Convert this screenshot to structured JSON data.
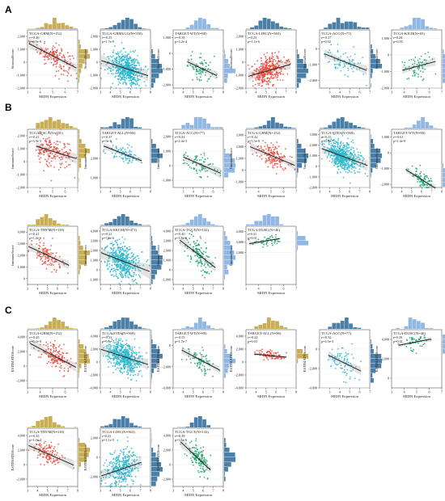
{
  "panel_letters": [
    "A",
    "B",
    "C"
  ],
  "x_axis_label": "MIDN Expression",
  "x_ticks": [
    3,
    4,
    5,
    6,
    7,
    8
  ],
  "chart_data": [
    {
      "type": "scatter",
      "panel": "A",
      "title": "TCGA-GBM(N=152)",
      "r_text": "r=-0.46",
      "p_text": "p=9.9e-9",
      "ylabel": "StromalScore",
      "yticks": [
        "2,000",
        "1,000",
        "0",
        "-1,000",
        "-2,000"
      ],
      "xlim": [
        3,
        7
      ],
      "ylim": [
        -2000,
        2500
      ],
      "slope": -500,
      "intercept": 3000,
      "x_mean": 5.2,
      "x_sd": 0.7,
      "spread": 500,
      "n_points": 152,
      "color": "#e8493c",
      "hist_color": "#c9ae55"
    },
    {
      "type": "scatter",
      "panel": "A",
      "title": "TCGA-GBMLGG(N=550)",
      "r_text": "r=-0.25",
      "p_text": "p=1.7e-9",
      "ylabel": "StromalScore",
      "yticks": [
        "2,000",
        "1,000",
        "0",
        "-1,000",
        "-2,000"
      ],
      "xlim": [
        3,
        8
      ],
      "ylim": [
        -2000,
        2500
      ],
      "slope": -250,
      "intercept": 900,
      "x_mean": 5.5,
      "x_sd": 0.8,
      "spread": 600,
      "n_points": 550,
      "color": "#2ab6cc",
      "hist_color": "#4a7fa8"
    },
    {
      "type": "scatter",
      "panel": "A",
      "title": "TARGET-WT(N=80)",
      "r_text": "r=-0.39",
      "p_text": "p=3.2e-4",
      "ylabel": "StromalScore",
      "yticks": [
        "1,000",
        "0",
        "-1,000",
        "-2,000"
      ],
      "xlim": [
        3,
        8
      ],
      "ylim": [
        -2200,
        1500
      ],
      "slope": -300,
      "intercept": 800,
      "x_mean": 5.8,
      "x_sd": 0.7,
      "spread": 450,
      "n_points": 80,
      "color": "#17a36b",
      "hist_color": "#90b8e6"
    },
    {
      "type": "scatter",
      "panel": "A",
      "title": "TCGA-LIHC(N=363)",
      "r_text": "r=0.23",
      "p_text": "p=1.1e-6",
      "ylabel": "StromalScore",
      "yticks": [
        "2,000",
        "1,000",
        "0",
        "-1,000",
        "-2,000"
      ],
      "xlim": [
        3,
        8
      ],
      "ylim": [
        -2000,
        2500
      ],
      "slope": 220,
      "intercept": -1800,
      "x_mean": 5.2,
      "x_sd": 0.8,
      "spread": 550,
      "n_points": 363,
      "color": "#e8493c",
      "hist_color": "#4a7fa8"
    },
    {
      "type": "scatter",
      "panel": "A",
      "title": "TCGA-ACC(N=77)",
      "r_text": "r=-0.27",
      "p_text": "p=0.02",
      "ylabel": "StromalScore",
      "yticks": [
        "0",
        "-1,000",
        "-2,000"
      ],
      "xlim": [
        2,
        7
      ],
      "ylim": [
        -2500,
        1200
      ],
      "slope": -250,
      "intercept": 300,
      "x_mean": 4.5,
      "x_sd": 0.9,
      "spread": 450,
      "n_points": 77,
      "color": "#2ab6cc",
      "hist_color": "#4a7fa8"
    },
    {
      "type": "scatter",
      "panel": "A",
      "title": "TCGA-KICH(N=65)",
      "r_text": "r=0.24",
      "p_text": "p=0.05",
      "ylabel": "StromalScore",
      "yticks": [
        "1,000",
        "0",
        "-1,000",
        "-2,000"
      ],
      "xlim": [
        3,
        7
      ],
      "ylim": [
        -2000,
        1500
      ],
      "slope": 200,
      "intercept": -1700,
      "x_mean": 5.0,
      "x_sd": 0.6,
      "spread": 400,
      "n_points": 65,
      "color": "#17a36b",
      "hist_color": "#90b8e6"
    },
    {
      "type": "scatter",
      "panel": "B",
      "title": "TCGA-ESCA(N=181)",
      "r_text": "r=-0.21",
      "p_text": "p=3.9e-3",
      "ylabel": "ImmuneScore",
      "yticks": [
        "2,000",
        "1,000",
        "0",
        "-1,000",
        "-2,000"
      ],
      "xlim": [
        3,
        7
      ],
      "ylim": [
        -2000,
        2500
      ],
      "slope": -300,
      "intercept": 2300,
      "x_mean": 5.0,
      "x_sd": 0.7,
      "spread": 550,
      "n_points": 181,
      "color": "#e8493c",
      "hist_color": "#c9ae55"
    },
    {
      "type": "scatter",
      "panel": "B",
      "title": "TARGET-ALL(N=86)",
      "r_text": "r=-0.37",
      "p_text": "p=5e-5",
      "ylabel": "ImmuneScore",
      "yticks": [
        "2,000",
        "1,000"
      ],
      "xlim": [
        3,
        8
      ],
      "ylim": [
        500,
        3500
      ],
      "slope": -200,
      "intercept": 3300,
      "x_mean": 5.5,
      "x_sd": 0.8,
      "spread": 250,
      "n_points": 86,
      "color": "#2ab6cc",
      "hist_color": "#4a7fa8"
    },
    {
      "type": "scatter",
      "panel": "B",
      "title": "TCGA-ACC(N=77)",
      "r_text": "r=-0.31",
      "p_text": "p=2.4e-3",
      "ylabel": "ImmuneScore",
      "yticks": [
        "2,000",
        "1,000",
        "0",
        "-1,000"
      ],
      "xlim": [
        2,
        7
      ],
      "ylim": [
        -1500,
        2500
      ],
      "slope": -300,
      "intercept": 1500,
      "x_mean": 4.5,
      "x_sd": 0.8,
      "spread": 500,
      "n_points": 77,
      "color": "#17a36b",
      "hist_color": "#90b8e6"
    },
    {
      "type": "scatter",
      "panel": "B",
      "title": "TCGA-GBM(N=152)",
      "r_text": "r=-0.42",
      "p_text": "p=5.5e-8",
      "ylabel": "ImmuneScore",
      "yticks": [
        "3,000",
        "2,000",
        "1,000",
        "0",
        "-1,000"
      ],
      "xlim": [
        3,
        7
      ],
      "ylim": [
        -1500,
        3500
      ],
      "slope": -450,
      "intercept": 3500,
      "x_mean": 5.2,
      "x_sd": 0.6,
      "spread": 500,
      "n_points": 152,
      "color": "#e8493c",
      "hist_color": "#4a7fa8"
    },
    {
      "type": "scatter",
      "panel": "B",
      "title": "TCGA-STES(N=569)",
      "r_text": "r=-0.25",
      "p_text": "p=6.9e-7",
      "ylabel": "ImmuneScore",
      "yticks": [
        "3,000",
        "2,000",
        "1,000",
        "0",
        "-1,000",
        "-2,000"
      ],
      "xlim": [
        3,
        8
      ],
      "ylim": [
        -2000,
        3500
      ],
      "slope": -350,
      "intercept": 2800,
      "x_mean": 5.3,
      "x_sd": 0.8,
      "spread": 650,
      "n_points": 569,
      "color": "#2ab6cc",
      "hist_color": "#4a7fa8"
    },
    {
      "type": "scatter",
      "panel": "B",
      "title": "TARGET-WT(N=80)",
      "r_text": "r=-0.61",
      "p_text": "p=1.4e-9",
      "ylabel": "ImmuneScore",
      "yticks": [
        "1,000",
        "0",
        "-1,000",
        "-2,000"
      ],
      "xlim": [
        3,
        8
      ],
      "ylim": [
        -2200,
        1500
      ],
      "slope": -400,
      "intercept": 700,
      "x_mean": 6.0,
      "x_sd": 0.6,
      "spread": 300,
      "n_points": 80,
      "color": "#17a36b",
      "hist_color": "#90b8e6"
    },
    {
      "type": "scatter",
      "panel": "B",
      "title": "TCGA-THYM(N=118)",
      "r_text": "r=-0.41",
      "p_text": "p=1.4e-6",
      "ylabel": "ImmuneScore",
      "yticks": [
        "4,000",
        "3,000",
        "2,000",
        "1,000",
        "0"
      ],
      "xlim": [
        3,
        8
      ],
      "ylim": [
        -500,
        4500
      ],
      "slope": -400,
      "intercept": 4000,
      "x_mean": 5.0,
      "x_sd": 0.7,
      "spread": 500,
      "n_points": 118,
      "color": "#e8493c",
      "hist_color": "#c9ae55"
    },
    {
      "type": "scatter",
      "panel": "B",
      "title": "TCGA-SKCM(N=471)",
      "r_text": "r=-0.21",
      "p_text": "p=7.6e-6",
      "ylabel": "ImmuneScore",
      "yticks": [
        "4,000",
        "3,000",
        "2,000",
        "1,000",
        "0",
        "-1,000"
      ],
      "xlim": [
        3,
        8
      ],
      "ylim": [
        -1500,
        4500
      ],
      "slope": -400,
      "intercept": 3000,
      "x_mean": 5.2,
      "x_sd": 0.8,
      "spread": 900,
      "n_points": 471,
      "color": "#2ab6cc",
      "hist_color": "#4a7fa8"
    },
    {
      "type": "scatter",
      "panel": "B",
      "title": "TCGA-TGCT(N=132)",
      "r_text": "r=-0.40",
      "p_text": "p=1.5e-6",
      "ylabel": "ImmuneScore",
      "yticks": [
        "4,000",
        "3,000",
        "2,000",
        "1,000",
        "0",
        "-1,000"
      ],
      "xlim": [
        3,
        8
      ],
      "ylim": [
        -1500,
        4500
      ],
      "slope": -800,
      "intercept": 6000,
      "x_mean": 5.6,
      "x_sd": 0.7,
      "spread": 700,
      "n_points": 132,
      "color": "#17a36b",
      "hist_color": "#90b8e6"
    },
    {
      "type": "scatter",
      "panel": "B",
      "title": "TCGA-DLBC(N=46)",
      "r_text": "r=0.41",
      "p_text": "p=0.01",
      "ylabel": "ImmuneScore",
      "yticks": [
        "4,000",
        "3,000",
        "2,000"
      ],
      "xlim": [
        3,
        7
      ],
      "ylim": [
        -1000,
        4500
      ],
      "slope": 200,
      "intercept": 2200,
      "x_mean": 4.8,
      "x_sd": 0.6,
      "spread": 300,
      "n_points": 46,
      "color": "#17a36b",
      "hist_color": "#90b8e6"
    },
    {
      "type": "scatter",
      "panel": "C",
      "title": "TCGA-GBM(N=152)",
      "r_text": "r=-0.45",
      "p_text": "p=6.2e-9",
      "ylabel": "ESTIMATEScore",
      "yticks": [
        "4,000",
        "2,000",
        "0",
        "-2,000"
      ],
      "xlim": [
        3,
        7
      ],
      "ylim": [
        -3000,
        5000
      ],
      "slope": -900,
      "intercept": 6000,
      "x_mean": 5.2,
      "x_sd": 0.6,
      "spread": 900,
      "n_points": 152,
      "color": "#e8493c",
      "hist_color": "#c9ae55"
    },
    {
      "type": "scatter",
      "panel": "C",
      "title": "TCGA-STES(N=569)",
      "r_text": "r=-0.21",
      "p_text": "p=9.6e-7",
      "ylabel": "ESTIMATEScore",
      "yticks": [
        "4,000",
        "2,000",
        "0",
        "-2,000",
        "-4,000"
      ],
      "xlim": [
        3,
        8
      ],
      "ylim": [
        -4000,
        5000
      ],
      "slope": -500,
      "intercept": 3500,
      "x_mean": 5.3,
      "x_sd": 0.8,
      "spread": 1100,
      "n_points": 569,
      "color": "#2ab6cc",
      "hist_color": "#4a7fa8"
    },
    {
      "type": "scatter",
      "panel": "C",
      "title": "TARGET-WT(N=80)",
      "r_text": "r=-0.55",
      "p_text": "p=1.7e-7",
      "ylabel": "ESTIMATEScore",
      "yticks": [
        "0",
        "-2,000",
        "-4,000"
      ],
      "xlim": [
        3,
        8
      ],
      "ylim": [
        -4000,
        1500
      ],
      "slope": -500,
      "intercept": 1500,
      "x_mean": 5.8,
      "x_sd": 0.7,
      "spread": 500,
      "n_points": 80,
      "color": "#17a36b",
      "hist_color": "#90b8e6"
    },
    {
      "type": "scatter",
      "panel": "C",
      "title": "TARGET-ALL(N=86)",
      "r_text": "r=-0.24",
      "p_text": "p=0.03",
      "ylabel": "ESTIMATEScore",
      "yticks": [
        "4,000",
        "2,000",
        "0",
        "-2,000",
        "-4,000"
      ],
      "xlim": [
        3,
        8
      ],
      "ylim": [
        -4000,
        5000
      ],
      "slope": -150,
      "intercept": 1800,
      "x_mean": 5.5,
      "x_sd": 0.8,
      "spread": 350,
      "n_points": 86,
      "color": "#e8493c",
      "hist_color": "#c9ae55"
    },
    {
      "type": "scatter",
      "panel": "C",
      "title": "TCGA-ACC(N=77)",
      "r_text": "r=-0.32",
      "p_text": "p=4.5e-3",
      "ylabel": "ESTIMATEScore",
      "yticks": [
        "0",
        "-2,000",
        "-4,000"
      ],
      "xlim": [
        2,
        7
      ],
      "ylim": [
        -4000,
        2000
      ],
      "slope": -500,
      "intercept": 800,
      "x_mean": 4.5,
      "x_sd": 0.8,
      "spread": 800,
      "n_points": 77,
      "color": "#2ab6cc",
      "hist_color": "#4a7fa8"
    },
    {
      "type": "scatter",
      "panel": "C",
      "title": "TCGA-DLBC(N=46)",
      "r_text": "r=0.39",
      "p_text": "p=0.01",
      "ylabel": "ESTIMATEScore",
      "yticks": [
        "4,000",
        "2,000",
        "0"
      ],
      "xlim": [
        3,
        7
      ],
      "ylim": [
        -1000,
        5000
      ],
      "slope": 250,
      "intercept": 2500,
      "x_mean": 4.8,
      "x_sd": 0.6,
      "spread": 400,
      "n_points": 46,
      "color": "#17a36b",
      "hist_color": "#90b8e6"
    },
    {
      "type": "scatter",
      "panel": "C",
      "title": "TCGA-THYM(N=118)",
      "r_text": "r=-0.35",
      "p_text": "p=1.0e-4",
      "ylabel": "ESTIMATEScore",
      "yticks": [
        "4,000",
        "2,000",
        "0",
        "-2,000"
      ],
      "xlim": [
        3,
        8
      ],
      "ylim": [
        -3000,
        5000
      ],
      "slope": -600,
      "intercept": 4500,
      "x_mean": 5.0,
      "x_sd": 0.7,
      "spread": 800,
      "n_points": 118,
      "color": "#e8493c",
      "hist_color": "#c9ae55"
    },
    {
      "type": "scatter",
      "panel": "C",
      "title": "TCGA-LIHC(N=363)",
      "r_text": "r=0.23",
      "p_text": "p=1.1e-5",
      "ylabel": "ESTIMATEScore",
      "yticks": [
        "2,000",
        "0",
        "-2,000"
      ],
      "xlim": [
        3,
        8
      ],
      "ylim": [
        -3000,
        3000
      ],
      "slope": 350,
      "intercept": -3000,
      "x_mean": 5.2,
      "x_sd": 0.8,
      "spread": 900,
      "n_points": 363,
      "color": "#2ab6cc",
      "hist_color": "#4a7fa8"
    },
    {
      "type": "scatter",
      "panel": "C",
      "title": "TCGA-TGCT(N=132)",
      "r_text": "r=-0.39",
      "p_text": "p=3.5e-6",
      "ylabel": "ESTIMATEScore",
      "yticks": [
        "4,000",
        "2,000",
        "0",
        "-2,000"
      ],
      "xlim": [
        3,
        8
      ],
      "ylim": [
        -3000,
        5000
      ],
      "slope": -1300,
      "intercept": 8000,
      "x_mean": 5.6,
      "x_sd": 0.6,
      "spread": 900,
      "n_points": 132,
      "color": "#17a36b",
      "hist_color": "#4a7fa8"
    }
  ]
}
